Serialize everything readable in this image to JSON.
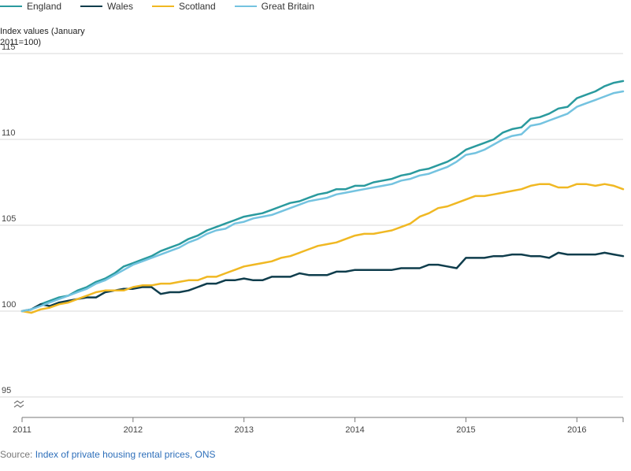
{
  "chart_data": {
    "type": "line",
    "ylabel": "Index values (January 2011=100)",
    "xlabel": "",
    "ylim": [
      95,
      115
    ],
    "yticks": [
      95,
      100,
      105,
      110,
      115
    ],
    "xticks": [
      "2011",
      "2012",
      "2013",
      "2014",
      "2015",
      "2016"
    ],
    "x_start": "2011-01",
    "x_end": "2016-06",
    "grid": "horizontal",
    "legend_position": "top-left",
    "axis_break": true,
    "series": [
      {
        "name": "England",
        "color": "#2a9a9e",
        "values": [
          100.0,
          100.1,
          100.4,
          100.6,
          100.8,
          100.9,
          101.2,
          101.4,
          101.7,
          101.9,
          102.2,
          102.6,
          102.8,
          103.0,
          103.2,
          103.5,
          103.7,
          103.9,
          104.2,
          104.4,
          104.7,
          104.9,
          105.1,
          105.3,
          105.5,
          105.6,
          105.7,
          105.9,
          106.1,
          106.3,
          106.4,
          106.6,
          106.8,
          106.9,
          107.1,
          107.1,
          107.3,
          107.3,
          107.5,
          107.6,
          107.7,
          107.9,
          108.0,
          108.2,
          108.3,
          108.5,
          108.7,
          109.0,
          109.4,
          109.6,
          109.8,
          110.0,
          110.4,
          110.6,
          110.7,
          111.2,
          111.3,
          111.5,
          111.8,
          111.9,
          112.4,
          112.6,
          112.8,
          113.1,
          113.3,
          113.4
        ]
      },
      {
        "name": "Wales",
        "color": "#0f3d4c",
        "values": [
          100.0,
          100.1,
          100.4,
          100.3,
          100.5,
          100.6,
          100.7,
          100.8,
          100.8,
          101.1,
          101.2,
          101.3,
          101.3,
          101.4,
          101.4,
          101.0,
          101.1,
          101.1,
          101.2,
          101.4,
          101.6,
          101.6,
          101.8,
          101.8,
          101.9,
          101.8,
          101.8,
          102.0,
          102.0,
          102.0,
          102.2,
          102.1,
          102.1,
          102.1,
          102.3,
          102.3,
          102.4,
          102.4,
          102.4,
          102.4,
          102.4,
          102.5,
          102.5,
          102.5,
          102.7,
          102.7,
          102.6,
          102.5,
          103.1,
          103.1,
          103.1,
          103.2,
          103.2,
          103.3,
          103.3,
          103.2,
          103.2,
          103.1,
          103.4,
          103.3,
          103.3,
          103.3,
          103.3,
          103.4,
          103.3,
          103.2
        ]
      },
      {
        "name": "Scotland",
        "color": "#f0b823",
        "values": [
          100.0,
          99.9,
          100.1,
          100.2,
          100.4,
          100.5,
          100.7,
          100.9,
          101.1,
          101.2,
          101.2,
          101.2,
          101.4,
          101.5,
          101.5,
          101.6,
          101.6,
          101.7,
          101.8,
          101.8,
          102.0,
          102.0,
          102.2,
          102.4,
          102.6,
          102.7,
          102.8,
          102.9,
          103.1,
          103.2,
          103.4,
          103.6,
          103.8,
          103.9,
          104.0,
          104.2,
          104.4,
          104.5,
          104.5,
          104.6,
          104.7,
          104.9,
          105.1,
          105.5,
          105.7,
          106.0,
          106.1,
          106.3,
          106.5,
          106.7,
          106.7,
          106.8,
          106.9,
          107.0,
          107.1,
          107.3,
          107.4,
          107.4,
          107.2,
          107.2,
          107.4,
          107.4,
          107.3,
          107.4,
          107.3,
          107.1
        ]
      },
      {
        "name": "Great Britain",
        "color": "#74c3e0",
        "values": [
          100.0,
          100.1,
          100.3,
          100.5,
          100.7,
          100.9,
          101.1,
          101.3,
          101.6,
          101.8,
          102.1,
          102.4,
          102.7,
          102.9,
          103.1,
          103.3,
          103.5,
          103.7,
          104.0,
          104.2,
          104.5,
          104.7,
          104.8,
          105.1,
          105.2,
          105.4,
          105.5,
          105.6,
          105.8,
          106.0,
          106.2,
          106.4,
          106.5,
          106.6,
          106.8,
          106.9,
          107.0,
          107.1,
          107.2,
          107.3,
          107.4,
          107.6,
          107.7,
          107.9,
          108.0,
          108.2,
          108.4,
          108.7,
          109.1,
          109.2,
          109.4,
          109.7,
          110.0,
          110.2,
          110.3,
          110.8,
          110.9,
          111.1,
          111.3,
          111.5,
          111.9,
          112.1,
          112.3,
          112.5,
          112.7,
          112.8
        ]
      }
    ]
  },
  "source": {
    "prefix": "Source: ",
    "link_text": "Index of private housing rental prices, ONS"
  }
}
